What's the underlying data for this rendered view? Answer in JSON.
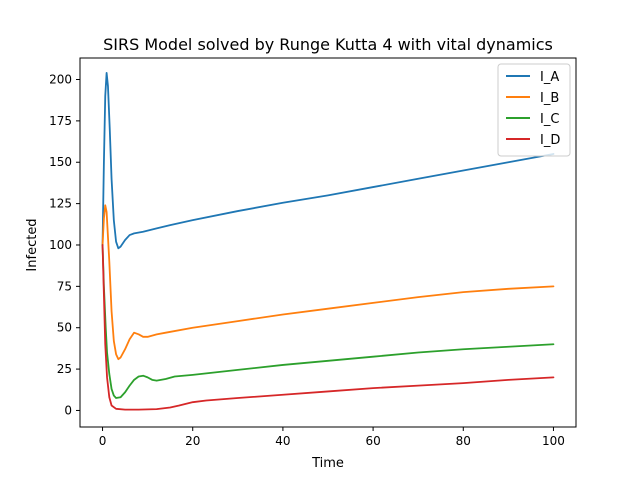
{
  "chart_data": {
    "type": "line",
    "title": "SIRS Model solved by Runge Kutta 4 with vital dynamics",
    "xlabel": "Time",
    "ylabel": "Infected",
    "xlim": [
      -5,
      105
    ],
    "ylim": [
      -10,
      213
    ],
    "xticks": [
      0,
      20,
      40,
      60,
      80,
      100
    ],
    "yticks": [
      0,
      25,
      50,
      75,
      100,
      125,
      150,
      175,
      200
    ],
    "grid": false,
    "legend_position": "top-right",
    "series": [
      {
        "name": "I_A",
        "color": "#1f77b4",
        "points": [
          [
            0,
            100
          ],
          [
            0.3,
            150
          ],
          [
            0.6,
            190
          ],
          [
            0.9,
            204
          ],
          [
            1.2,
            196
          ],
          [
            1.6,
            170
          ],
          [
            2,
            140
          ],
          [
            2.5,
            115
          ],
          [
            3,
            102
          ],
          [
            3.5,
            98
          ],
          [
            4,
            99
          ],
          [
            5,
            103
          ],
          [
            6,
            106
          ],
          [
            7,
            107
          ],
          [
            9,
            108
          ],
          [
            12,
            110
          ],
          [
            15,
            112
          ],
          [
            20,
            115
          ],
          [
            30,
            120.5
          ],
          [
            40,
            125.5
          ],
          [
            50,
            130
          ],
          [
            60,
            135
          ],
          [
            70,
            140
          ],
          [
            80,
            145
          ],
          [
            90,
            150
          ],
          [
            100,
            155
          ]
        ]
      },
      {
        "name": "I_B",
        "color": "#ff7f0e",
        "points": [
          [
            0,
            100
          ],
          [
            0.3,
            116
          ],
          [
            0.6,
            124
          ],
          [
            0.9,
            120
          ],
          [
            1.5,
            90
          ],
          [
            2,
            60
          ],
          [
            2.5,
            42
          ],
          [
            3,
            34
          ],
          [
            3.5,
            31
          ],
          [
            4,
            32
          ],
          [
            5,
            37
          ],
          [
            6,
            43
          ],
          [
            7,
            47
          ],
          [
            8,
            46
          ],
          [
            9,
            44.5
          ],
          [
            10,
            44.5
          ],
          [
            12,
            46
          ],
          [
            14,
            47
          ],
          [
            20,
            50
          ],
          [
            30,
            54
          ],
          [
            40,
            58
          ],
          [
            50,
            61.5
          ],
          [
            60,
            65
          ],
          [
            70,
            68.5
          ],
          [
            80,
            71.5
          ],
          [
            90,
            73.5
          ],
          [
            100,
            75
          ]
        ]
      },
      {
        "name": "I_C",
        "color": "#2ca02c",
        "points": [
          [
            0,
            100
          ],
          [
            0.3,
            75
          ],
          [
            0.7,
            50
          ],
          [
            1,
            35
          ],
          [
            1.5,
            22
          ],
          [
            2,
            13
          ],
          [
            2.5,
            9
          ],
          [
            3,
            7.5
          ],
          [
            4,
            8
          ],
          [
            5,
            11
          ],
          [
            6,
            15
          ],
          [
            7,
            18.5
          ],
          [
            8,
            20.5
          ],
          [
            9,
            21
          ],
          [
            10,
            20
          ],
          [
            11,
            18.5
          ],
          [
            12,
            18
          ],
          [
            14,
            19
          ],
          [
            16,
            20.5
          ],
          [
            20,
            21.5
          ],
          [
            30,
            24.5
          ],
          [
            40,
            27.5
          ],
          [
            50,
            30
          ],
          [
            60,
            32.5
          ],
          [
            70,
            35
          ],
          [
            80,
            37
          ],
          [
            90,
            38.5
          ],
          [
            100,
            40
          ]
        ]
      },
      {
        "name": "I_D",
        "color": "#d62728",
        "points": [
          [
            0,
            100
          ],
          [
            0.3,
            70
          ],
          [
            0.6,
            40
          ],
          [
            1,
            20
          ],
          [
            1.5,
            8
          ],
          [
            2,
            3
          ],
          [
            3,
            1
          ],
          [
            5,
            0.5
          ],
          [
            8,
            0.5
          ],
          [
            12,
            0.8
          ],
          [
            15,
            1.8
          ],
          [
            17,
            3
          ],
          [
            20,
            5
          ],
          [
            23,
            6
          ],
          [
            30,
            7.5
          ],
          [
            40,
            9.5
          ],
          [
            50,
            11.5
          ],
          [
            60,
            13.5
          ],
          [
            70,
            15
          ],
          [
            80,
            16.5
          ],
          [
            90,
            18.5
          ],
          [
            100,
            20
          ]
        ]
      }
    ]
  }
}
